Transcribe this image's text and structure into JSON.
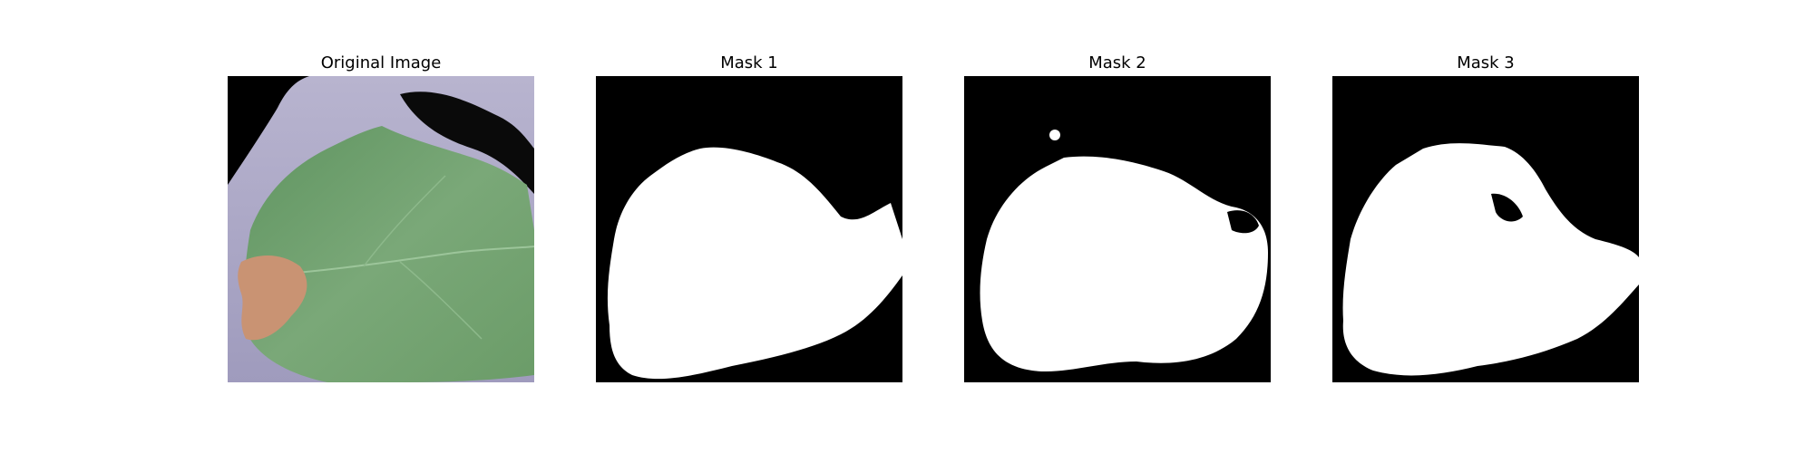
{
  "figure": {
    "panels": [
      {
        "title": "Original Image"
      },
      {
        "title": "Mask 1"
      },
      {
        "title": "Mask 2"
      },
      {
        "title": "Mask 3"
      }
    ],
    "colors": {
      "mask_background": "#000000",
      "mask_foreground": "#ffffff",
      "leaf_green": "#6e9e6a",
      "leaf_border": "#a9a6c4",
      "lesion": "#c99373"
    }
  }
}
